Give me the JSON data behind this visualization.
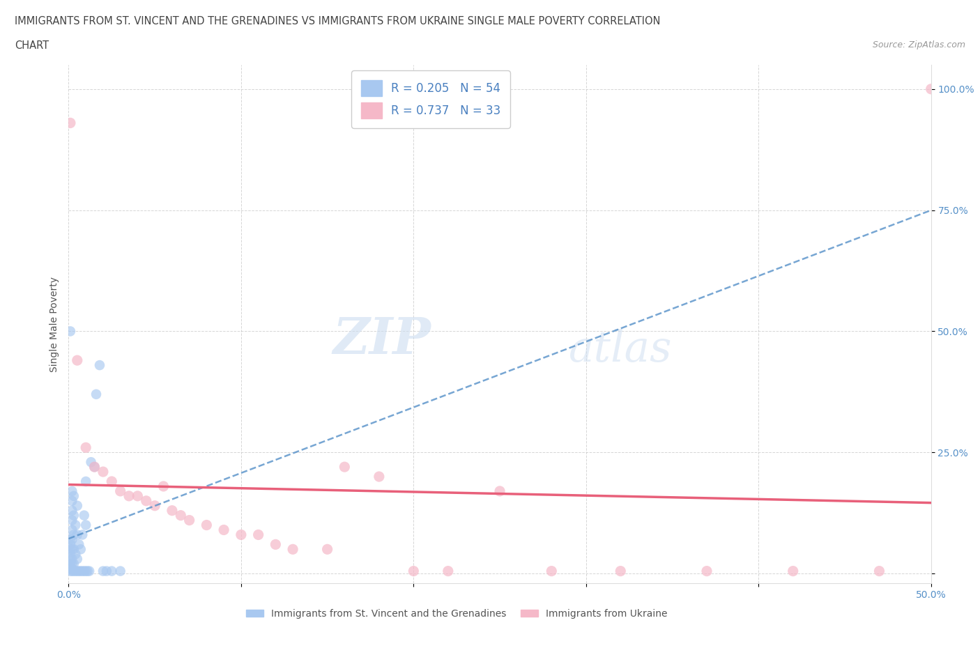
{
  "title_line1": "IMMIGRANTS FROM ST. VINCENT AND THE GRENADINES VS IMMIGRANTS FROM UKRAINE SINGLE MALE POVERTY CORRELATION",
  "title_line2": "CHART",
  "source": "Source: ZipAtlas.com",
  "ylabel": "Single Male Poverty",
  "xlim": [
    0.0,
    0.5
  ],
  "ylim": [
    -0.02,
    1.05
  ],
  "x_ticks": [
    0.0,
    0.1,
    0.2,
    0.3,
    0.4,
    0.5
  ],
  "x_tick_labels": [
    "0.0%",
    "",
    "",
    "",
    "",
    "50.0%"
  ],
  "y_ticks": [
    0.0,
    0.25,
    0.5,
    0.75,
    1.0
  ],
  "y_tick_labels": [
    "",
    "25.0%",
    "50.0%",
    "75.0%",
    "100.0%"
  ],
  "blue_R": 0.205,
  "blue_N": 54,
  "pink_R": 0.737,
  "pink_N": 33,
  "blue_color": "#a8c8f0",
  "pink_color": "#f5b8c8",
  "blue_line_color": "#5590c8",
  "pink_line_color": "#e8607a",
  "blue_scatter_x": [
    0.001,
    0.001,
    0.001,
    0.001,
    0.001,
    0.001,
    0.001,
    0.001,
    0.002,
    0.002,
    0.002,
    0.002,
    0.002,
    0.002,
    0.002,
    0.002,
    0.002,
    0.002,
    0.002,
    0.003,
    0.003,
    0.003,
    0.003,
    0.003,
    0.003,
    0.004,
    0.004,
    0.004,
    0.005,
    0.005,
    0.005,
    0.005,
    0.006,
    0.006,
    0.007,
    0.007,
    0.008,
    0.008,
    0.009,
    0.009,
    0.01,
    0.01,
    0.01,
    0.011,
    0.012,
    0.013,
    0.015,
    0.016,
    0.018,
    0.02,
    0.022,
    0.025,
    0.03,
    0.001
  ],
  "blue_scatter_y": [
    0.005,
    0.01,
    0.02,
    0.03,
    0.04,
    0.05,
    0.06,
    0.07,
    0.005,
    0.01,
    0.02,
    0.03,
    0.05,
    0.07,
    0.09,
    0.11,
    0.13,
    0.15,
    0.17,
    0.005,
    0.02,
    0.05,
    0.08,
    0.12,
    0.16,
    0.005,
    0.04,
    0.1,
    0.005,
    0.03,
    0.08,
    0.14,
    0.005,
    0.06,
    0.005,
    0.05,
    0.005,
    0.08,
    0.005,
    0.12,
    0.005,
    0.1,
    0.19,
    0.005,
    0.005,
    0.23,
    0.22,
    0.37,
    0.43,
    0.005,
    0.005,
    0.005,
    0.005,
    0.5
  ],
  "pink_scatter_x": [
    0.001,
    0.005,
    0.01,
    0.015,
    0.02,
    0.025,
    0.03,
    0.035,
    0.04,
    0.045,
    0.05,
    0.055,
    0.06,
    0.065,
    0.07,
    0.08,
    0.09,
    0.1,
    0.11,
    0.12,
    0.13,
    0.15,
    0.16,
    0.18,
    0.2,
    0.22,
    0.25,
    0.28,
    0.32,
    0.37,
    0.42,
    0.47,
    0.5
  ],
  "pink_scatter_y": [
    0.93,
    0.44,
    0.26,
    0.22,
    0.21,
    0.19,
    0.17,
    0.16,
    0.16,
    0.15,
    0.14,
    0.18,
    0.13,
    0.12,
    0.11,
    0.1,
    0.09,
    0.08,
    0.08,
    0.06,
    0.05,
    0.05,
    0.22,
    0.2,
    0.005,
    0.005,
    0.17,
    0.005,
    0.005,
    0.005,
    0.005,
    0.005,
    1.0
  ],
  "watermark_zip": "ZIP",
  "watermark_atlas": "atlas",
  "legend_label_blue": "Immigrants from St. Vincent and the Grenadines",
  "legend_label_pink": "Immigrants from Ukraine",
  "background_color": "#ffffff",
  "grid_color": "#cccccc"
}
